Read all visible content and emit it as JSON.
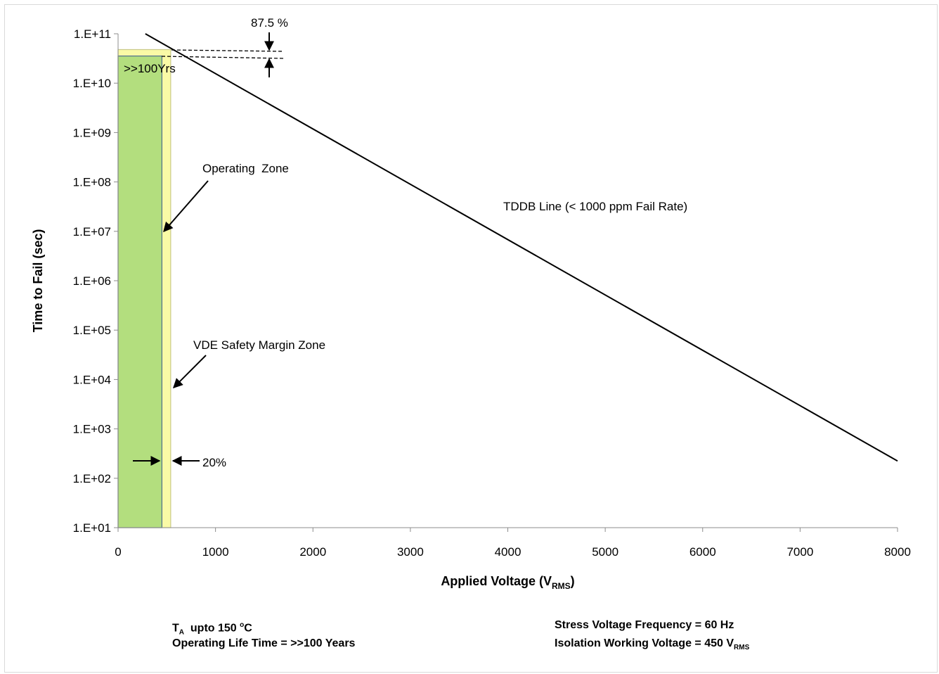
{
  "chart_data": {
    "type": "line",
    "title": "",
    "xlabel": {
      "main": "Applied Voltage (V",
      "sub": "RMS",
      "close": ")"
    },
    "ylabel": "Time to Fail (sec)",
    "xlim": [
      0,
      8000
    ],
    "xticks": [
      0,
      1000,
      2000,
      3000,
      4000,
      5000,
      6000,
      7000,
      8000
    ],
    "xtick_labels": [
      "0",
      "1000",
      "2000",
      "3000",
      "4000",
      "5000",
      "6000",
      "7000",
      "8000"
    ],
    "ylim_log10": [
      1,
      11
    ],
    "y_scale": "log",
    "yticks": [
      1,
      2,
      3,
      4,
      5,
      6,
      7,
      8,
      9,
      10,
      11
    ],
    "ytick_labels": [
      "1.E+01",
      "1.E+02",
      "1.E+03",
      "1.E+04",
      "1.E+05",
      "1.E+06",
      "1.E+07",
      "1.E+08",
      "1.E+09",
      "1.E+10",
      "1.E+11"
    ],
    "series": [
      {
        "name": "TDDB Line (< 1000 ppm Fail Rate)",
        "color": "#000000",
        "x": [
          280,
          8000
        ],
        "y_log10": [
          11.0,
          2.35
        ]
      }
    ],
    "zones": [
      {
        "name": "Operating  Zone",
        "color": "#b3de7e",
        "x": [
          0,
          450
        ],
        "y_log10": [
          1,
          10.55
        ]
      },
      {
        "name": "VDE Safety Margin Zone",
        "color": "#fafaa6",
        "x": [
          0,
          540
        ],
        "y_log10": [
          1,
          10.68
        ]
      }
    ],
    "annotations": {
      "tddb_label": "TDDB Line (< 1000 ppm Fail Rate)",
      "operating_zone": "Operating  Zone",
      "vde_zone": "VDE Safety Margin Zone",
      "margin_pct": "20%",
      "life_pct": "87.5 %",
      "life_label": ">>100Yrs"
    },
    "grid": false,
    "legend": "none"
  },
  "footer": {
    "ta_main": "T",
    "ta_sub": "A",
    "ta_text": "  upto 150 ",
    "ta_sup": "o",
    "ta_unit": "C",
    "life": "Operating Life Time = >>100 Years",
    "freq": "Stress Voltage Frequency = 60 Hz",
    "iso_text": "Isolation Working Voltage = 450 V",
    "iso_sub": "RMS"
  }
}
